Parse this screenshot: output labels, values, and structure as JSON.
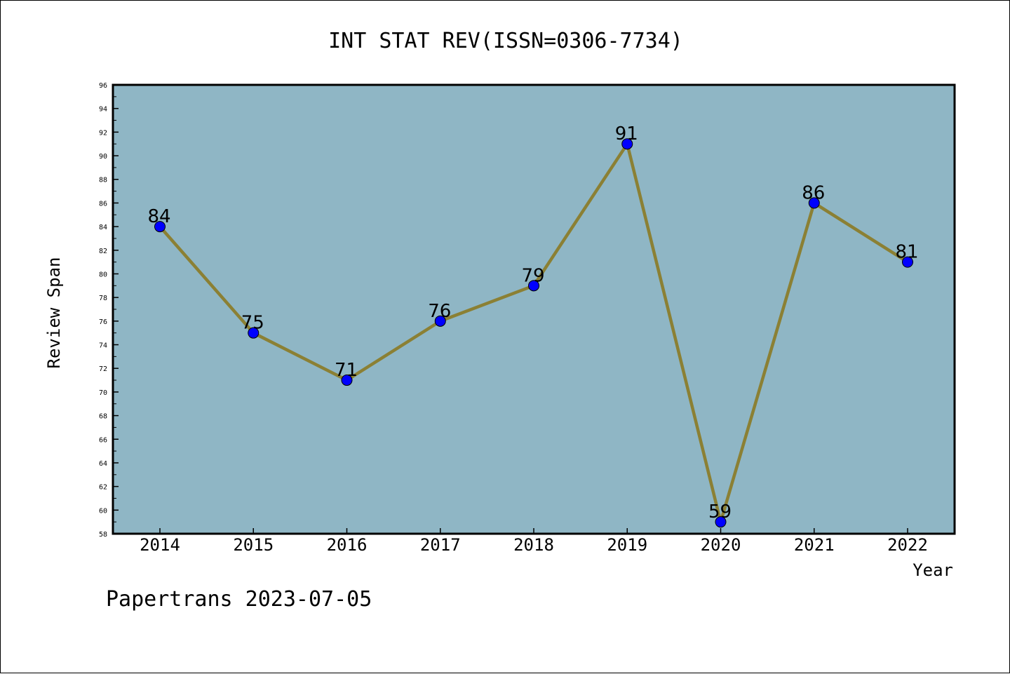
{
  "chart_data": {
    "type": "line",
    "title": "INT STAT REV(ISSN=0306-7734)",
    "xlabel": "Year",
    "ylabel": "Review Span",
    "categories": [
      "2014",
      "2015",
      "2016",
      "2017",
      "2018",
      "2019",
      "2020",
      "2021",
      "2022"
    ],
    "values": [
      84,
      75,
      71,
      76,
      79,
      91,
      59,
      86,
      81
    ],
    "data_labels": [
      "84",
      "75",
      "71",
      "76",
      "79",
      "91",
      "59",
      "86",
      "81"
    ],
    "ylim": [
      58,
      96
    ],
    "yticks": [
      "58",
      "60",
      "62",
      "64",
      "66",
      "68",
      "70",
      "72",
      "74",
      "76",
      "78",
      "80",
      "82",
      "84",
      "86",
      "88",
      "90",
      "92",
      "94",
      "96"
    ],
    "grid": false,
    "legend": "none",
    "colors": {
      "plot_background": "#8fb6c5",
      "line": "#8b8034",
      "marker": "#0000ff"
    }
  },
  "footer": {
    "text": "Papertrans 2023-07-05"
  }
}
